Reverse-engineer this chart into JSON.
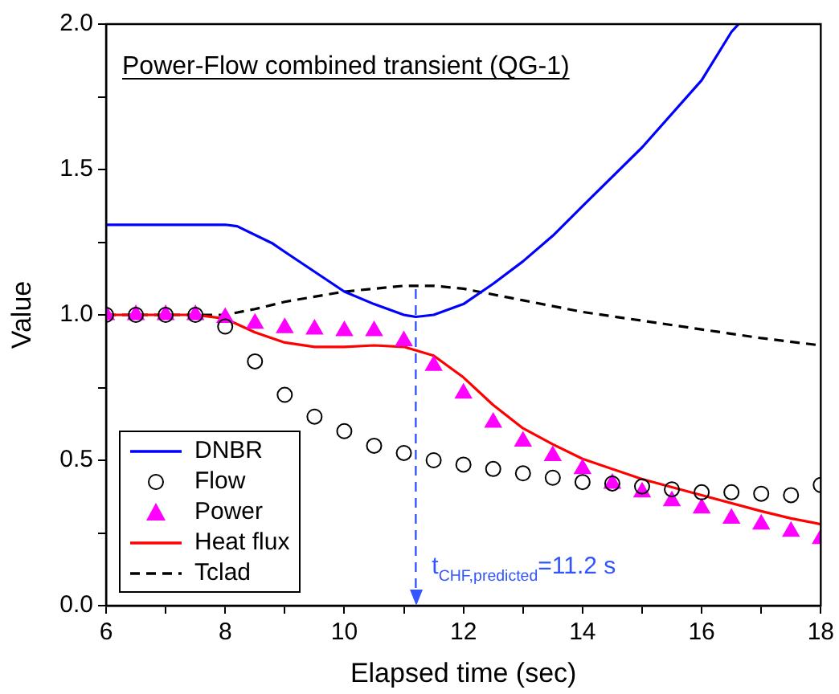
{
  "chart_data": {
    "type": "line",
    "title": "Power-Flow combined transient (QG-1)",
    "xlabel": "Elapsed time (sec)",
    "ylabel": "Value",
    "xlim": [
      6,
      18
    ],
    "xticks": [
      6,
      {
        "value": 7,
        "label": null
      },
      8,
      {
        "value": 9,
        "label": null
      },
      10,
      {
        "value": 11,
        "label": null
      },
      12,
      {
        "value": 13,
        "label": null
      },
      14,
      {
        "value": 15,
        "label": null
      },
      16,
      {
        "value": 17,
        "label": null
      },
      18
    ],
    "ylim": [
      0,
      2
    ],
    "yticks": [
      {
        "value": 0,
        "label": "0.0"
      },
      {
        "value": 0.25,
        "label": null
      },
      {
        "value": 0.5,
        "label": "0.5"
      },
      {
        "value": 0.75,
        "label": null
      },
      {
        "value": 1,
        "label": "1.0"
      },
      {
        "value": 1.25,
        "label": null
      },
      {
        "value": 1.5,
        "label": "1.5"
      },
      {
        "value": 1.75,
        "label": null
      },
      {
        "value": 2,
        "label": "2.0"
      }
    ],
    "grid": false,
    "legend": "bottom left",
    "ref_lines": [
      {
        "axis": "x",
        "value": 11.2,
        "label": "t$_{CHF,predicted}$=11.2 s",
        "color": "#3355ff",
        "line_style": "dashed"
      }
    ],
    "series": [
      {
        "name": "DNBR",
        "color": "#0000ff",
        "marker": "none",
        "line_style": "solid",
        "x": [
          6,
          7,
          8,
          8.2,
          8.8,
          9,
          10,
          10.5,
          11,
          11.2,
          11.5,
          12,
          12.5,
          13,
          13.5,
          14,
          15,
          16,
          16.5,
          16.62
        ],
        "values": [
          1.31,
          1.31,
          1.31,
          1.305,
          1.245,
          1.217,
          1.08,
          1.037,
          1.0,
          0.993,
          1.0,
          1.037,
          1.107,
          1.184,
          1.272,
          1.374,
          1.576,
          1.807,
          1.973,
          2.0
        ]
      },
      {
        "name": "Flow",
        "type": "scatter",
        "color": "#000000",
        "marker": "circle",
        "x": [
          6,
          6.5,
          7,
          7.5,
          8,
          8.5,
          9,
          9.5,
          10,
          10.5,
          11,
          11.5,
          12,
          12.5,
          13,
          13.5,
          14,
          14.5,
          15,
          15.5,
          16,
          16.5,
          17,
          17.5,
          18
        ],
        "values": [
          1.0,
          1.0,
          1.0,
          1.0,
          0.96,
          0.84,
          0.725,
          0.65,
          0.6,
          0.55,
          0.525,
          0.5,
          0.485,
          0.47,
          0.455,
          0.44,
          0.425,
          0.42,
          0.41,
          0.4,
          0.39,
          0.39,
          0.385,
          0.38,
          0.415
        ]
      },
      {
        "name": "Power",
        "type": "scatter",
        "color": "#ff00ff",
        "marker": "triangle",
        "x": [
          6,
          6.5,
          7,
          7.5,
          8,
          8.5,
          9,
          9.5,
          10,
          10.5,
          11,
          11.5,
          12,
          12.5,
          13,
          13.5,
          14,
          14.5,
          15,
          15.5,
          16,
          16.5,
          17,
          17.5,
          18
        ],
        "values": [
          1.0,
          1.0,
          1.0,
          1.0,
          0.99,
          0.97,
          0.955,
          0.95,
          0.945,
          0.945,
          0.91,
          0.825,
          0.73,
          0.63,
          0.565,
          0.515,
          0.47,
          0.42,
          0.39,
          0.36,
          0.335,
          0.3,
          0.28,
          0.255,
          0.23
        ]
      },
      {
        "name": "Heat flux",
        "color": "#ff0000",
        "marker": "none",
        "line_style": "solid",
        "x": [
          6,
          7,
          7.5,
          8,
          8.5,
          9,
          9.5,
          10,
          10.5,
          11,
          11.5,
          12,
          12.5,
          13,
          13.5,
          14,
          15,
          16,
          17,
          17.5,
          18
        ],
        "values": [
          1.0,
          1.0,
          1.0,
          0.987,
          0.94,
          0.905,
          0.89,
          0.89,
          0.895,
          0.89,
          0.86,
          0.785,
          0.69,
          0.61,
          0.555,
          0.505,
          0.435,
          0.38,
          0.325,
          0.3,
          0.28
        ]
      },
      {
        "name": "Tclad",
        "color": "#000000",
        "marker": "none",
        "line_style": "dashed",
        "x": [
          6,
          7,
          8,
          8.5,
          9,
          10,
          11,
          11.5,
          12,
          13,
          14,
          15,
          16,
          17,
          18
        ],
        "values": [
          1.0,
          1.0,
          1.0,
          1.02,
          1.045,
          1.08,
          1.1,
          1.1,
          1.09,
          1.05,
          1.01,
          0.98,
          0.95,
          0.92,
          0.895
        ]
      }
    ]
  }
}
